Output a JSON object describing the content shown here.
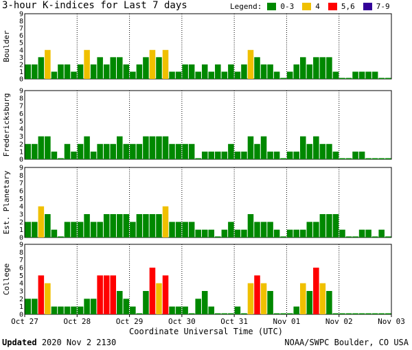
{
  "header": {
    "title": "3-hour K-indices for Last 7 days",
    "legend_label": "Legend:",
    "legend": [
      {
        "label": "0-3",
        "color": "#008800"
      },
      {
        "label": "4",
        "color": "#f0c000"
      },
      {
        "label": "5,6",
        "color": "#ff0000"
      },
      {
        "label": "7-9",
        "color": "#330099"
      }
    ]
  },
  "footer": {
    "x_axis_title": "Coordinate Universal Time (UTC)",
    "updated_label": "Updated",
    "updated_value": "2020 Nov  2 2130",
    "credit": "NOAA/SWPC Boulder, CO USA"
  },
  "chart_data": {
    "type": "bar",
    "x_tick_labels": [
      "Oct 27",
      "Oct 28",
      "Oct 29",
      "Oct 30",
      "Oct 31",
      "Nov 01",
      "Nov 02",
      "Nov 03"
    ],
    "y_ticks": [
      0,
      1,
      2,
      3,
      4,
      5,
      6,
      7,
      8,
      9
    ],
    "ylim": [
      0,
      9
    ],
    "bins_per_day": 8,
    "colors": {
      "quiet": "#008800",
      "k4": "#f0c000",
      "storm": "#ff0000",
      "severe": "#330099"
    },
    "panels": [
      {
        "name": "Boulder",
        "values": [
          2,
          2,
          3,
          4,
          1,
          2,
          2,
          1,
          2,
          4,
          2,
          3,
          2,
          3,
          3,
          2,
          1,
          2,
          3,
          4,
          3,
          4,
          1,
          1,
          2,
          2,
          1,
          2,
          1,
          2,
          1,
          2,
          1,
          2,
          4,
          3,
          2,
          2,
          1,
          0,
          1,
          2,
          3,
          2,
          3,
          3,
          3,
          1,
          0,
          0,
          1,
          1,
          1,
          1,
          0,
          0
        ]
      },
      {
        "name": "Fredericksburg",
        "values": [
          2,
          2,
          3,
          3,
          1,
          0,
          2,
          1,
          2,
          3,
          1,
          2,
          2,
          2,
          3,
          2,
          2,
          2,
          3,
          3,
          3,
          3,
          2,
          2,
          2,
          2,
          0,
          1,
          1,
          1,
          1,
          2,
          1,
          1,
          3,
          2,
          3,
          1,
          1,
          0,
          1,
          1,
          3,
          2,
          3,
          2,
          2,
          1,
          0,
          0,
          1,
          1,
          0,
          0,
          0,
          0
        ]
      },
      {
        "name": "Est. Planetary",
        "values": [
          2,
          2,
          4,
          3,
          1,
          0,
          2,
          2,
          2,
          3,
          2,
          2,
          3,
          3,
          3,
          3,
          2,
          3,
          3,
          3,
          3,
          4,
          2,
          2,
          2,
          2,
          1,
          1,
          1,
          0,
          1,
          2,
          1,
          1,
          3,
          2,
          2,
          2,
          1,
          0,
          1,
          1,
          1,
          2,
          2,
          3,
          3,
          3,
          1,
          0,
          0,
          1,
          1,
          0,
          1,
          0
        ]
      },
      {
        "name": "College",
        "values": [
          2,
          2,
          5,
          4,
          1,
          1,
          1,
          1,
          1,
          2,
          2,
          5,
          5,
          5,
          3,
          2,
          1,
          0,
          3,
          6,
          4,
          5,
          1,
          1,
          1,
          0,
          2,
          3,
          1,
          0,
          0,
          0,
          1,
          0,
          4,
          5,
          4,
          3,
          0,
          0,
          0,
          1,
          4,
          3,
          6,
          4,
          3,
          0,
          0,
          0,
          0,
          0,
          0,
          0,
          0,
          0
        ]
      }
    ]
  }
}
